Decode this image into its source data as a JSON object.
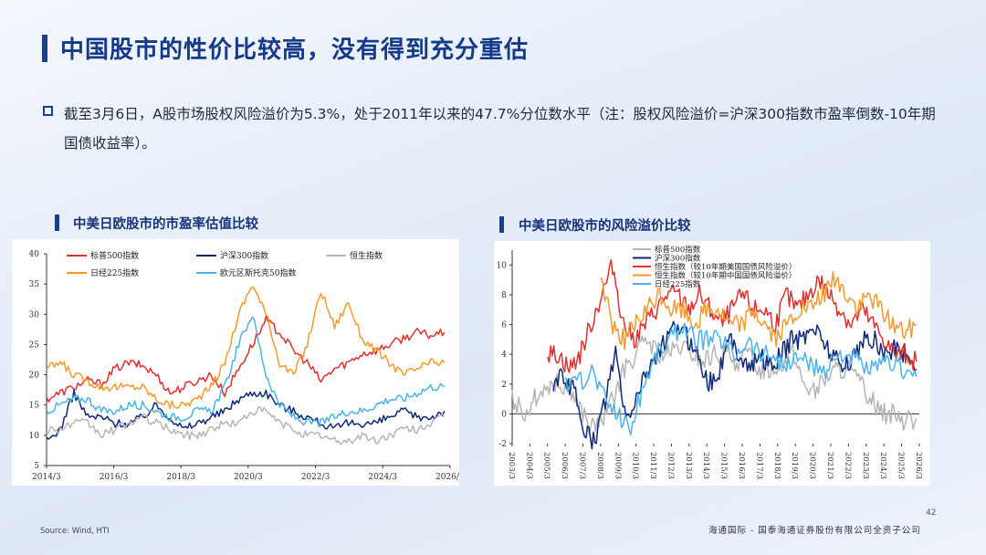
{
  "page": {
    "title": "中国股市的性价比较高，没有得到充分重估",
    "bullet": "截至3月6日，A股市场股权风险溢价为5.3%，处于2011年以来的47.7%分位数水平（注：股权风险溢价=沪深300指数市盈率倒数-10年期国债收益率）。",
    "source": "Source: Wind, HTI",
    "page_number": "42",
    "footer": "海通国际 - 国泰海通证券股份有限公司全资子公司"
  },
  "chart_data": [
    {
      "type": "line",
      "title": "中美日欧股市的市盈率估值比较",
      "ylim": [
        5,
        40
      ],
      "yticks": [
        5,
        10,
        15,
        20,
        25,
        30,
        35,
        40
      ],
      "xlim": [
        2014.17,
        2026.17
      ],
      "xticks": [
        "2014/3",
        "2016/3",
        "2018/3",
        "2020/3",
        "2022/3",
        "2024/3",
        "2026/3"
      ],
      "legend_position": "top",
      "series": [
        {
          "name": "标普500指数",
          "color": "#e03030",
          "start": 2014.17,
          "values": [
            16,
            17,
            18,
            19,
            18.5,
            21,
            22,
            21.5,
            20,
            17,
            18,
            19,
            20,
            17,
            21,
            25,
            29,
            27,
            24,
            22,
            19,
            21,
            22,
            23.5,
            24,
            25,
            26,
            27,
            26.5,
            27
          ]
        },
        {
          "name": "沪深300指数",
          "color": "#0d2a7a",
          "start": 2014.17,
          "values": [
            9,
            11,
            17,
            13,
            13,
            12,
            12,
            13,
            15,
            13,
            11,
            12,
            13,
            14,
            16,
            17,
            17,
            15,
            14,
            13,
            12,
            11,
            12,
            12,
            12,
            13,
            14,
            13,
            13,
            14
          ]
        },
        {
          "name": "恒生指数",
          "color": "#b5b5b5",
          "start": 2014.17,
          "values": [
            11,
            11,
            12,
            12,
            10,
            11,
            12,
            13,
            12,
            11,
            10,
            10,
            11,
            12,
            12,
            14,
            14,
            12,
            11,
            10,
            10,
            9,
            9,
            10,
            9,
            10,
            11,
            11,
            12,
            13
          ]
        },
        {
          "name": "日经225指数",
          "color": "#f59a2a",
          "start": 2014.17,
          "values": [
            21,
            22,
            20,
            19,
            18,
            18,
            18,
            18,
            16,
            15,
            15,
            16,
            18,
            22,
            30,
            35,
            30,
            22,
            20,
            25,
            34,
            28,
            32,
            26,
            24,
            22,
            20,
            21,
            22,
            22
          ]
        },
        {
          "name": "欧元区斯托克50指数",
          "color": "#4ab4ea",
          "start": 2014.17,
          "values": [
            14,
            15,
            16,
            16,
            14,
            14,
            15,
            15,
            14,
            13,
            13,
            14,
            14,
            18,
            25,
            30,
            20,
            15,
            13,
            12,
            12,
            13,
            14,
            14,
            15,
            16,
            16,
            17,
            18,
            18
          ]
        }
      ]
    },
    {
      "type": "line",
      "title": "中美日欧股市的风险溢价比较",
      "ylim": [
        -2,
        11
      ],
      "yticks": [
        -2,
        0,
        2,
        4,
        6,
        8,
        10
      ],
      "xlim": [
        2003.17,
        2026.17
      ],
      "xticks": [
        "2003/3",
        "2004/3",
        "2005/3",
        "2006/3",
        "2007/3",
        "2008/3",
        "2009/3",
        "2010/3",
        "2011/3",
        "2012/3",
        "2013/3",
        "2014/3",
        "2015/3",
        "2016/3",
        "2017/3",
        "2018/3",
        "2019/3",
        "2020/3",
        "2021/3",
        "2022/3",
        "2023/3",
        "2024/3",
        "2025/3",
        "2026/3"
      ],
      "legend_position": "top-left",
      "series": [
        {
          "name": "标普500指数",
          "color": "#b5b5b5",
          "start": 2003.17,
          "values": [
            1,
            0,
            1,
            2,
            2,
            2,
            0.5,
            -1,
            -0.5,
            1,
            3,
            4,
            5,
            4,
            4,
            4.5,
            4,
            3.5,
            4,
            4,
            3.5,
            4,
            3,
            3,
            3.5,
            4,
            2,
            1.5,
            2.5,
            3,
            3,
            2,
            1,
            0,
            0,
            -0.5,
            -0.3
          ]
        },
        {
          "name": "沪深300指数",
          "color": "#0d2a7a",
          "start": 2005.5,
          "values": [
            2,
            2.5,
            1.5,
            -1,
            -2,
            1,
            4,
            -0.5,
            1,
            3,
            4,
            5,
            6,
            5,
            4,
            2,
            3,
            5,
            4,
            3,
            4,
            3,
            4,
            5,
            5,
            6,
            5,
            4,
            3,
            4,
            5,
            5,
            4,
            4.5,
            4,
            3
          ]
        },
        {
          "name": "恒生指数（较10年期美国国债风险溢价）",
          "color": "#e03030",
          "start": 2005.17,
          "values": [
            4,
            4,
            3,
            4,
            6,
            8,
            10,
            6,
            5,
            6,
            7,
            8,
            8,
            7,
            8,
            7,
            6,
            7,
            8,
            7,
            7,
            6,
            8,
            7,
            8,
            9,
            8,
            7,
            6,
            7,
            6,
            5,
            4,
            4,
            3.5
          ]
        },
        {
          "name": "恒生指数（较10年期中国国债风险溢价）",
          "color": "#f59a2a",
          "start": 2008.2,
          "values": [
            9,
            6,
            5,
            6,
            7,
            8,
            7,
            7,
            6,
            7,
            7,
            6,
            6,
            7,
            6,
            5,
            6,
            7,
            7,
            8,
            9,
            8,
            7,
            8,
            7,
            6,
            5.5,
            6
          ]
        },
        {
          "name": "日经225指数",
          "color": "#4ab4ea",
          "start": 2006.2,
          "values": [
            2,
            2,
            3,
            1,
            0,
            -1,
            2,
            4,
            5,
            6,
            5,
            5,
            5,
            4,
            5,
            4,
            4,
            3,
            4,
            3,
            3,
            4,
            4,
            3,
            3,
            3.5,
            3,
            2.5
          ]
        }
      ]
    }
  ]
}
